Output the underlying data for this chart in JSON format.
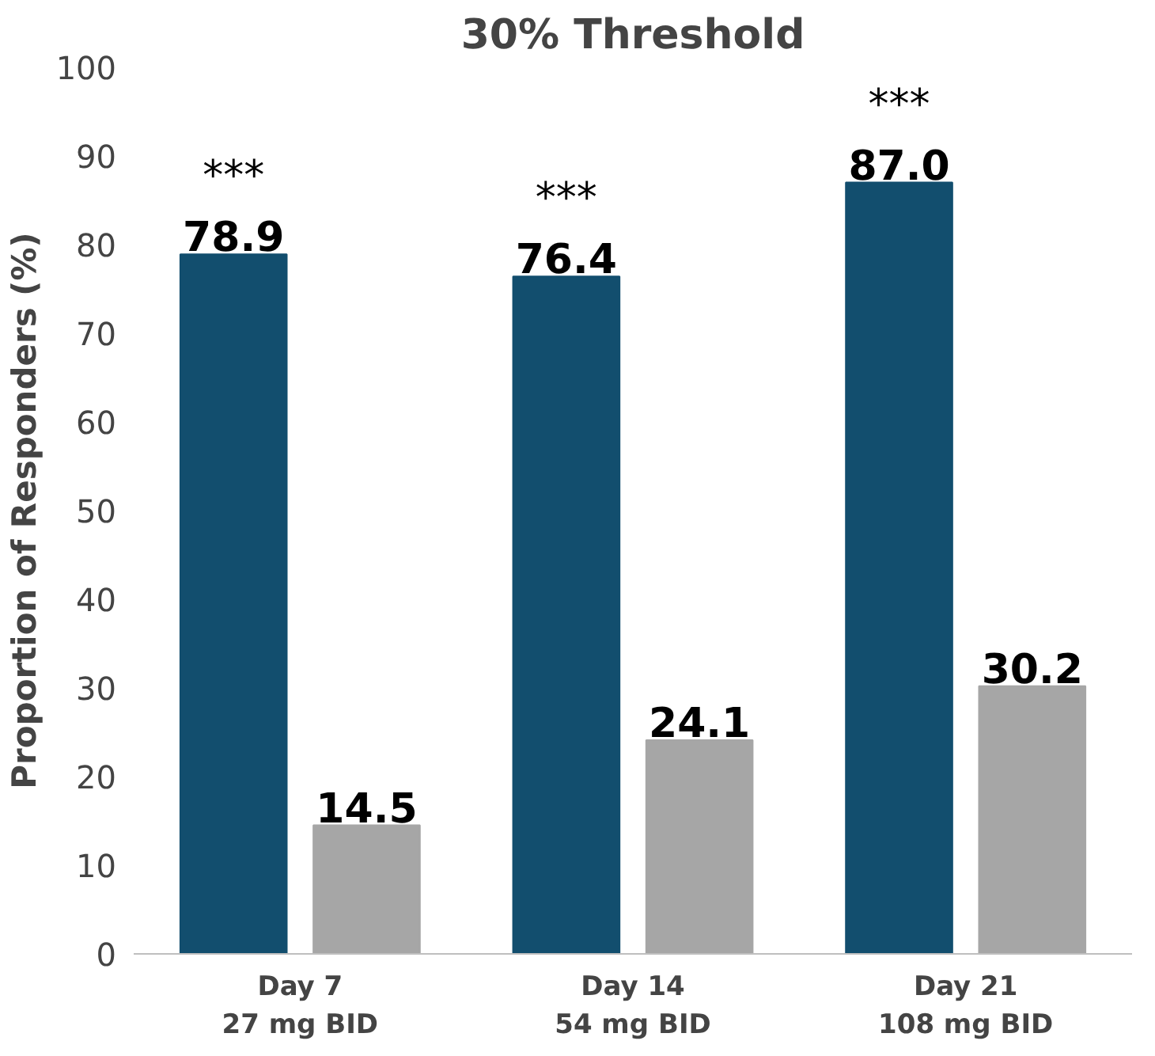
{
  "chart_data": {
    "type": "bar",
    "title": "30% Threshold",
    "ylabel": "Proportion of Responders (%)",
    "categories": [
      "Day 7\n27 mg BID",
      "Day 14\n54 mg BID",
      "Day 21\n108 mg BID"
    ],
    "series": [
      {
        "color": "#124e6e",
        "values": [
          78.9,
          76.4,
          87.0
        ]
      },
      {
        "color": "#a6a6a6",
        "values": [
          14.5,
          24.1,
          30.2
        ]
      }
    ],
    "value_labels": [
      [
        "78.9",
        "76.4",
        "87.0"
      ],
      [
        "14.5",
        "24.1",
        "30.2"
      ]
    ],
    "ylim": [
      0,
      100
    ],
    "yticks": [
      0,
      10,
      20,
      30,
      40,
      50,
      60,
      70,
      80,
      90,
      100
    ],
    "grid": false,
    "annotations": [
      "***",
      "***",
      "***"
    ]
  }
}
